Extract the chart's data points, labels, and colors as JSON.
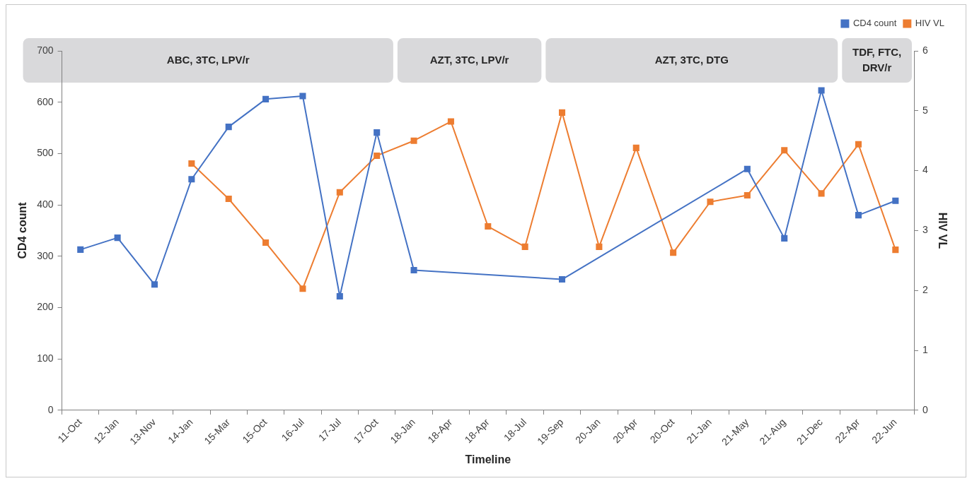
{
  "chart_data": {
    "type": "line",
    "xlabel": "Timeline",
    "ylabel": "CD4 count",
    "y2label": "HIV VL",
    "categories": [
      "11-Oct",
      "12-Jan",
      "13-Nov",
      "14-Jan",
      "15-Mar",
      "15-Oct",
      "16-Jul",
      "17-Jul",
      "17-Oct",
      "18-Jan",
      "18-Apr",
      "18-Apr",
      "18-Jul",
      "19-Sep",
      "20-Jan",
      "20-Apr",
      "20-Oct",
      "21-Jan",
      "21-May",
      "21-Aug",
      "21-Dec",
      "22-Apr",
      "22-Jun"
    ],
    "series": [
      {
        "name": "CD4 count",
        "color": "#4472c4",
        "values": [
          313,
          336,
          245,
          450,
          552,
          606,
          612,
          222,
          541,
          273,
          null,
          null,
          null,
          255,
          null,
          null,
          null,
          null,
          470,
          335,
          623,
          380,
          408
        ]
      },
      {
        "name": "HIV VL",
        "color": "#ed7d31",
        "axis": "y2",
        "values": [
          null,
          null,
          null,
          4.12,
          3.53,
          2.8,
          2.03,
          3.64,
          4.25,
          4.5,
          4.82,
          3.07,
          2.73,
          4.97,
          2.73,
          4.38,
          2.63,
          3.48,
          3.59,
          4.34,
          3.62,
          4.44,
          2.68
        ]
      }
    ],
    "ylim": [
      0,
      700
    ],
    "yticks": [
      0,
      100,
      200,
      300,
      400,
      500,
      600,
      700
    ],
    "y2lim": [
      0,
      6
    ],
    "y2ticks": [
      0,
      1,
      2,
      3,
      4,
      5,
      6
    ],
    "bands": [
      {
        "axis": "x",
        "from": "11-Oct",
        "to": "17-Oct",
        "label": "ABC, 3TC, LPV/r",
        "color": "#d9d9db"
      },
      {
        "axis": "x",
        "from": "18-Jan",
        "to": "18-Jul",
        "label": "AZT, 3TC, LPV/r",
        "color": "#d9d9db"
      },
      {
        "axis": "x",
        "from": "19-Sep",
        "to": "21-Dec",
        "label": "AZT, 3TC, DTG",
        "color": "#d9d9db"
      },
      {
        "axis": "x",
        "from": "22-Apr",
        "to": "22-Jun",
        "label": "TDF, FTC, DRV/r",
        "color": "#d9d9db"
      }
    ],
    "grid": false,
    "legend": "top right",
    "marker": "square",
    "line_style": "solid"
  }
}
